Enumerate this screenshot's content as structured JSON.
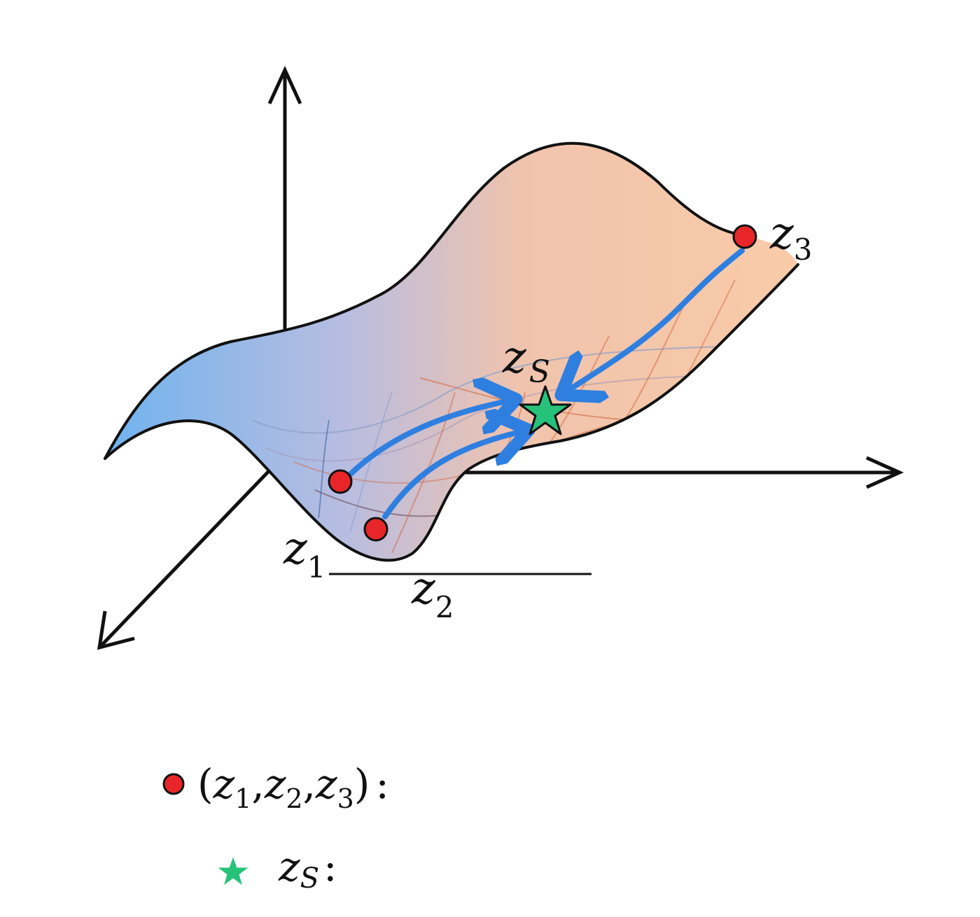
{
  "labels": {
    "z1": {
      "base": "z",
      "sub": "1"
    },
    "z2": {
      "base": "z",
      "sub": "2"
    },
    "z3": {
      "base": "z",
      "sub": "3"
    },
    "zs": {
      "base": "z",
      "sub": "S"
    }
  },
  "legend": {
    "points": {
      "open": "(",
      "z1": "z",
      "z1_sub": "1",
      "comma1": ",",
      "z2": "z",
      "z2_sub": "2",
      "comma2": ",",
      "z3": "z",
      "z3_sub": "3",
      "close": ")",
      "colon": ":"
    },
    "star": {
      "base": "z",
      "sub": "S",
      "colon": ":"
    }
  },
  "colors": {
    "point": "#e8262a",
    "star": "#27c27a",
    "arrow": "#2f7fe0",
    "surface_left": "#7ab8ee",
    "surface_right": "#f8c9a8",
    "grid": "#d2643c",
    "axis": "#111111"
  }
}
